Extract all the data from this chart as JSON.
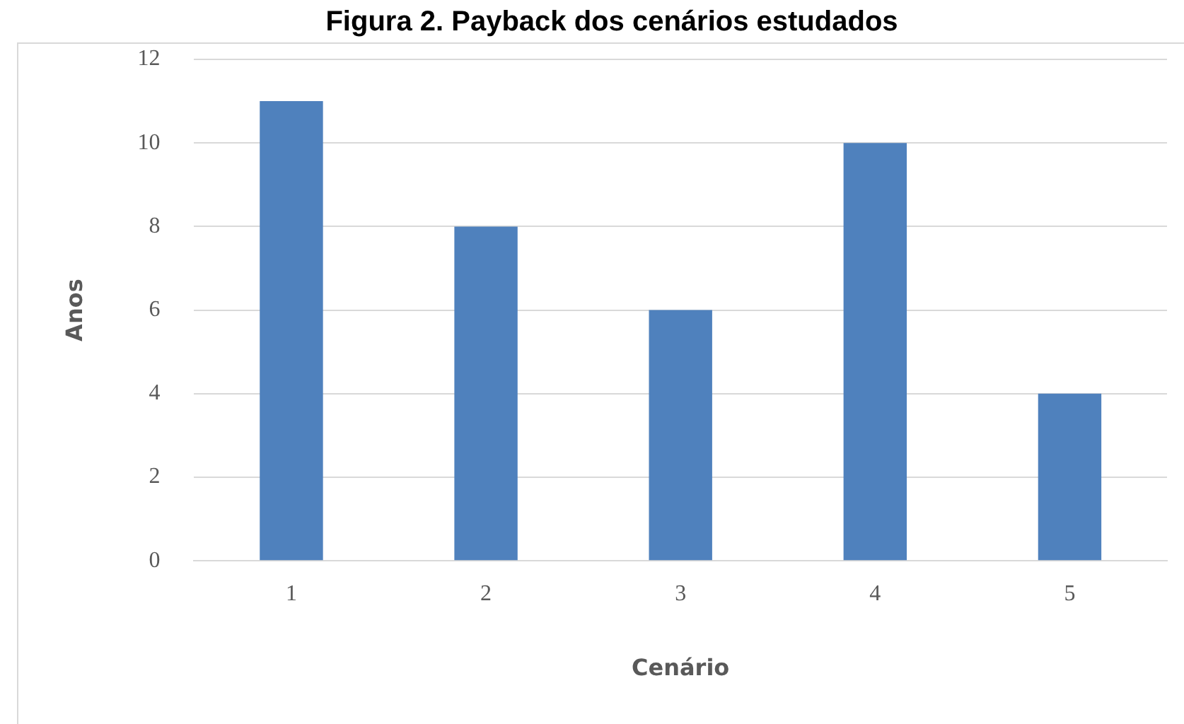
{
  "chart_data": {
    "type": "bar",
    "title": "Figura 2. Payback dos cenários estudados",
    "xlabel": "Cenário",
    "ylabel": "Anos",
    "categories": [
      "1",
      "2",
      "3",
      "4",
      "5"
    ],
    "values": [
      11,
      8,
      6,
      10,
      4
    ],
    "color": "#4f81bd",
    "ylim": [
      0,
      12
    ],
    "yticks": [
      0,
      2,
      4,
      6,
      8,
      10,
      12
    ],
    "grid": "y",
    "legend": false
  }
}
